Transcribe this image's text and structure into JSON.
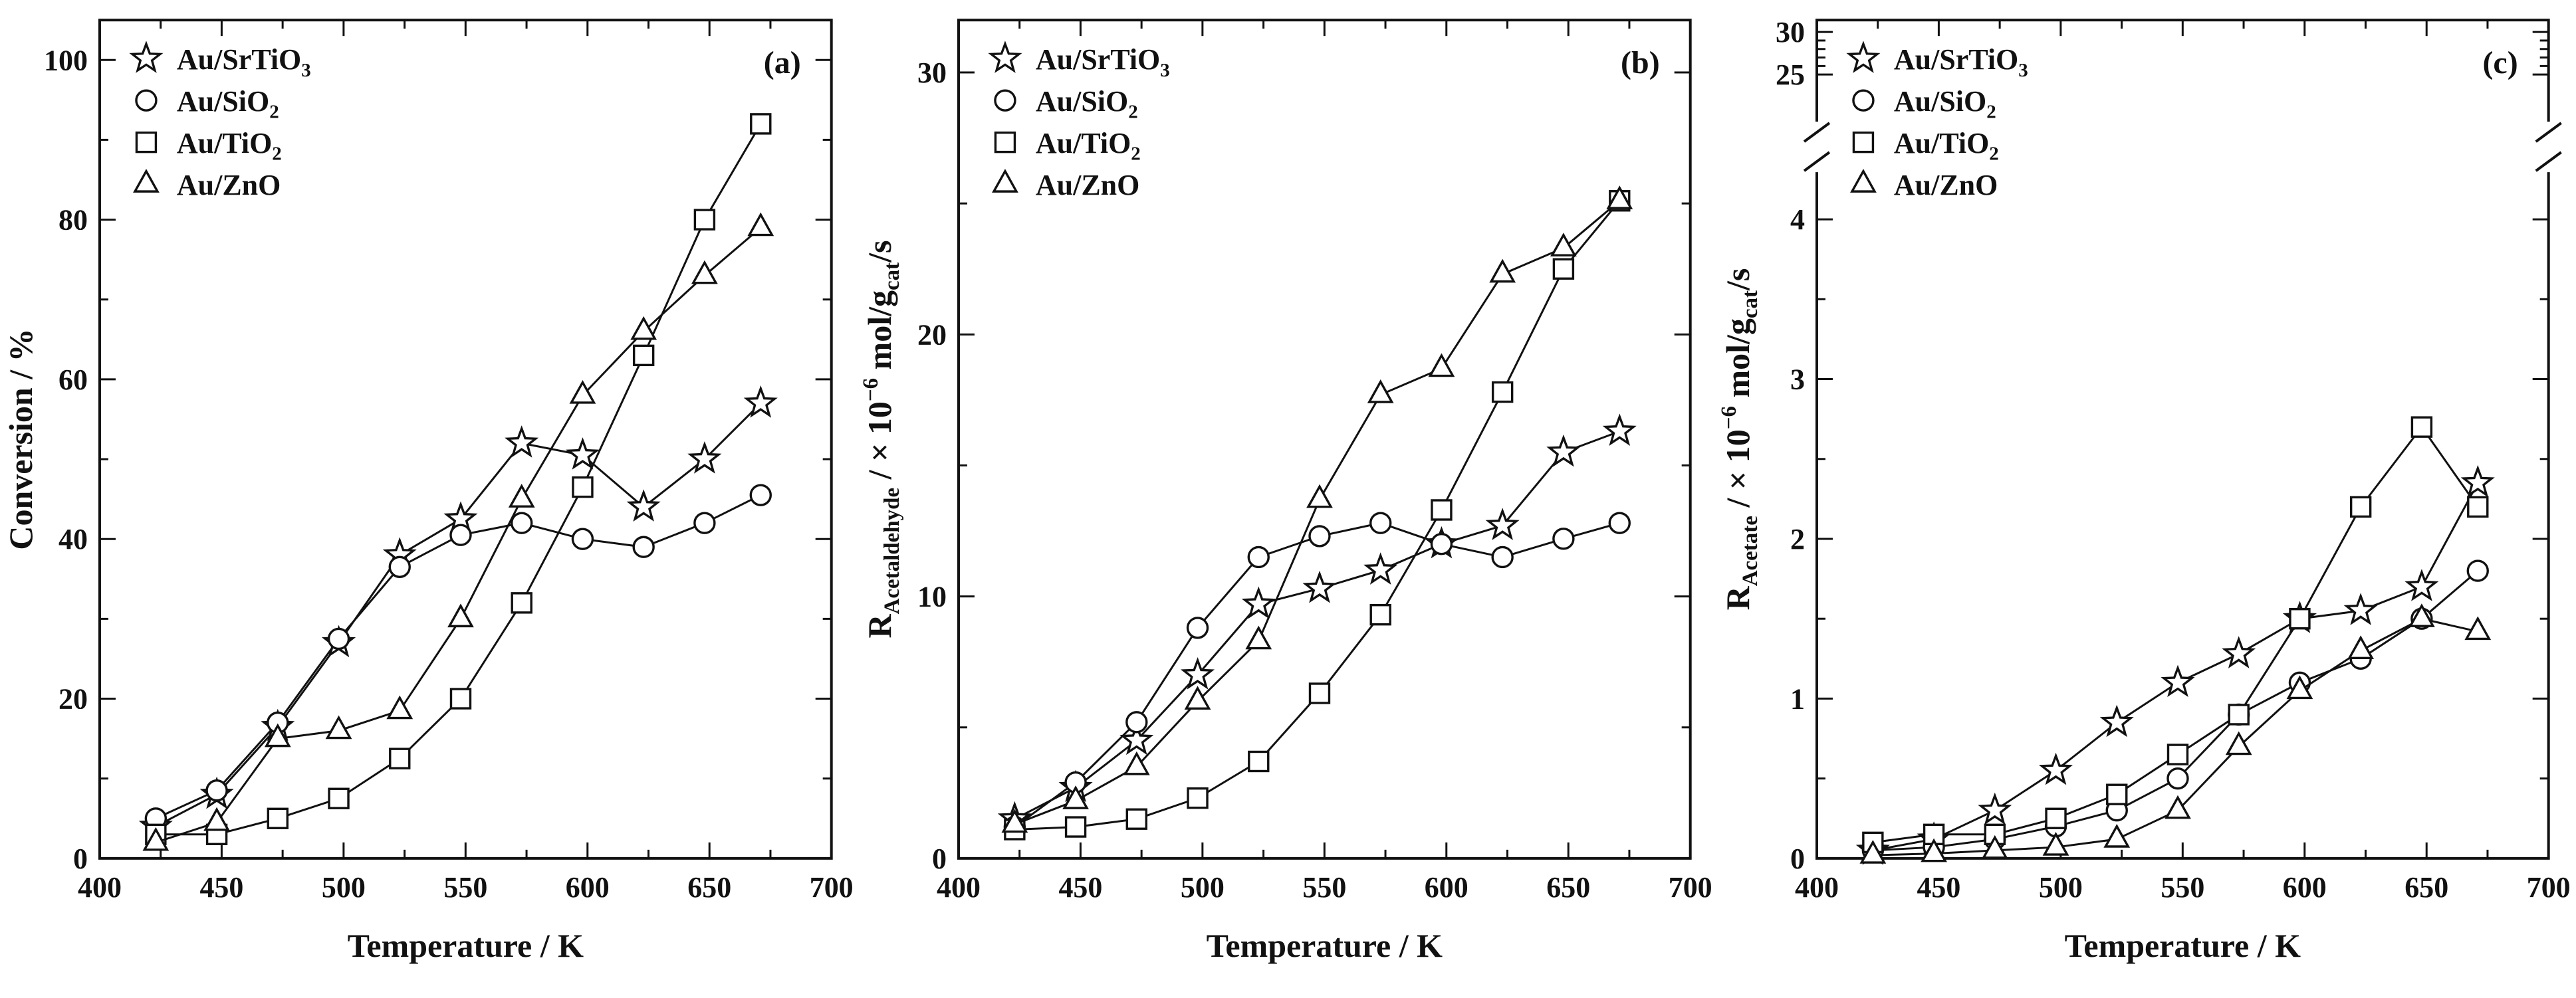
{
  "figure": {
    "background": "#ffffff",
    "line_color": "#111111",
    "marker_fill": "#ffffff"
  },
  "chart_data": [
    {
      "id": "a",
      "type": "line",
      "panel_label": "(a)",
      "title": "",
      "xlabel": "Temperature / K",
      "ylabel": "Conversion / %",
      "ylabel_rich": [
        {
          "t": "Conversion / %"
        }
      ],
      "xlim": [
        400,
        700
      ],
      "ylim": [
        0,
        105
      ],
      "x_ticks": [
        400,
        450,
        500,
        550,
        600,
        650,
        700
      ],
      "x_minor_step": 25,
      "y_ticks": [
        0,
        20,
        40,
        60,
        80,
        100
      ],
      "y_minor_step": 10,
      "grid": false,
      "legend_position": "top-left",
      "x": [
        423,
        448,
        473,
        498,
        523,
        548,
        573,
        598,
        623,
        648,
        671
      ],
      "series": [
        {
          "name": "Au/SrTiO3",
          "name_rich": [
            {
              "t": "Au/SrTiO"
            },
            {
              "t": "3",
              "script": "sub"
            }
          ],
          "marker": "star",
          "values": [
            4,
            8,
            16.5,
            27,
            38,
            42.5,
            52,
            50.5,
            44,
            50,
            57
          ]
        },
        {
          "name": "Au/SiO2",
          "name_rich": [
            {
              "t": "Au/SiO"
            },
            {
              "t": "2",
              "script": "sub"
            }
          ],
          "marker": "circle",
          "values": [
            5,
            8.5,
            17,
            27.5,
            36.5,
            40.5,
            42,
            40,
            39,
            42,
            45.5
          ]
        },
        {
          "name": "Au/TiO2",
          "name_rich": [
            {
              "t": "Au/TiO"
            },
            {
              "t": "2",
              "script": "sub"
            }
          ],
          "marker": "square",
          "values": [
            3,
            3,
            5,
            7.5,
            12.5,
            20,
            32,
            46.5,
            63,
            80,
            92
          ]
        },
        {
          "name": "Au/ZnO",
          "name_rich": [
            {
              "t": "Au/ZnO"
            }
          ],
          "marker": "triangle",
          "values": [
            2,
            4.5,
            15,
            16,
            18.5,
            30,
            45,
            58,
            66,
            73,
            79
          ]
        }
      ]
    },
    {
      "id": "b",
      "type": "line",
      "panel_label": "(b)",
      "title": "",
      "xlabel": "Temperature / K",
      "ylabel": "RAcetaldehyde / × 10−6 mol/gcat/s",
      "ylabel_rich": [
        {
          "t": "R"
        },
        {
          "t": "Acetaldehyde",
          "script": "sub"
        },
        {
          "t": " / × 10"
        },
        {
          "t": "−6",
          "script": "sup"
        },
        {
          "t": " mol/g"
        },
        {
          "t": "cat",
          "script": "sub"
        },
        {
          "t": "/s"
        }
      ],
      "xlim": [
        400,
        700
      ],
      "ylim": [
        0,
        32
      ],
      "x_ticks": [
        400,
        450,
        500,
        550,
        600,
        650,
        700
      ],
      "x_minor_step": 25,
      "y_ticks": [
        0,
        10,
        20,
        30
      ],
      "y_minor_step": 5,
      "grid": false,
      "legend_position": "top-left",
      "x": [
        423,
        448,
        473,
        498,
        523,
        548,
        573,
        598,
        623,
        648,
        671
      ],
      "series": [
        {
          "name": "Au/SrTiO3",
          "name_rich": [
            {
              "t": "Au/SrTiO"
            },
            {
              "t": "3",
              "script": "sub"
            }
          ],
          "marker": "star",
          "values": [
            1.5,
            2.7,
            4.5,
            7,
            9.7,
            10.3,
            11,
            12,
            12.7,
            15.5,
            16.3
          ]
        },
        {
          "name": "Au/SiO2",
          "name_rich": [
            {
              "t": "Au/SiO"
            },
            {
              "t": "2",
              "script": "sub"
            }
          ],
          "marker": "circle",
          "values": [
            1.2,
            2.9,
            5.2,
            8.8,
            11.5,
            12.3,
            12.8,
            12,
            11.5,
            12.2,
            12.8
          ]
        },
        {
          "name": "Au/TiO2",
          "name_rich": [
            {
              "t": "Au/TiO"
            },
            {
              "t": "2",
              "script": "sub"
            }
          ],
          "marker": "square",
          "values": [
            1.1,
            1.2,
            1.5,
            2.3,
            3.7,
            6.3,
            9.3,
            13.3,
            17.8,
            22.5,
            25.1
          ]
        },
        {
          "name": "Au/ZnO",
          "name_rich": [
            {
              "t": "Au/ZnO"
            }
          ],
          "marker": "triangle",
          "values": [
            1.3,
            2.2,
            3.5,
            6,
            8.3,
            13.7,
            17.7,
            18.7,
            22.3,
            23.3,
            25.1
          ]
        }
      ]
    },
    {
      "id": "c",
      "type": "line",
      "panel_label": "(c)",
      "title": "",
      "xlabel": "Temperature / K",
      "ylabel": "RAcetate / × 10−6 mol/gcat/s",
      "ylabel_rich": [
        {
          "t": "R"
        },
        {
          "t": "Acetate",
          "script": "sub"
        },
        {
          "t": " / × 10"
        },
        {
          "t": "−6",
          "script": "sup"
        },
        {
          "t": " mol/g"
        },
        {
          "t": "cat",
          "script": "sub"
        },
        {
          "t": "/s"
        }
      ],
      "xlim": [
        400,
        700
      ],
      "ylim": [
        0,
        30
      ],
      "x_ticks": [
        400,
        450,
        500,
        550,
        600,
        650,
        700
      ],
      "x_minor_step": 25,
      "y_break": {
        "lower": [
          0,
          4
        ],
        "upper": [
          25,
          30
        ]
      },
      "y_ticks_lower": [
        0,
        1,
        2,
        3,
        4
      ],
      "y_minor_step_lower": 0.5,
      "y_ticks_upper": [
        25,
        30
      ],
      "y_minor_step_upper": 1,
      "grid": false,
      "legend_position": "top-left",
      "x": [
        423,
        448,
        473,
        498,
        523,
        548,
        573,
        598,
        623,
        648,
        671
      ],
      "series": [
        {
          "name": "Au/SrTiO3",
          "name_rich": [
            {
              "t": "Au/SrTiO"
            },
            {
              "t": "3",
              "script": "sub"
            }
          ],
          "marker": "star",
          "values": [
            0.05,
            0.12,
            0.3,
            0.55,
            0.85,
            1.1,
            1.28,
            1.5,
            1.55,
            1.7,
            2.35
          ]
        },
        {
          "name": "Au/SiO2",
          "name_rich": [
            {
              "t": "Au/SiO"
            },
            {
              "t": "2",
              "script": "sub"
            }
          ],
          "marker": "circle",
          "values": [
            0.05,
            0.07,
            0.12,
            0.2,
            0.3,
            0.5,
            0.9,
            1.1,
            1.25,
            1.5,
            1.8
          ]
        },
        {
          "name": "Au/TiO2",
          "name_rich": [
            {
              "t": "Au/TiO"
            },
            {
              "t": "2",
              "script": "sub"
            }
          ],
          "marker": "square",
          "values": [
            0.1,
            0.15,
            0.15,
            0.25,
            0.4,
            0.65,
            0.9,
            1.5,
            2.2,
            2.7,
            2.2
          ]
        },
        {
          "name": "Au/ZnO",
          "name_rich": [
            {
              "t": "Au/ZnO"
            }
          ],
          "marker": "triangle",
          "values": [
            0.02,
            0.03,
            0.05,
            0.07,
            0.12,
            0.3,
            0.7,
            1.05,
            1.3,
            1.5,
            1.42
          ]
        }
      ]
    }
  ]
}
